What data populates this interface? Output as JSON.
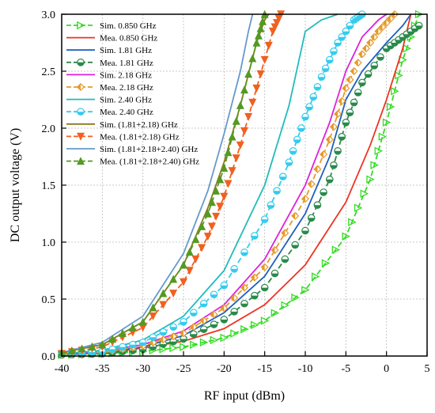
{
  "chart_data": {
    "type": "line",
    "xlabel": "RF input (dBm)",
    "ylabel": "DC output voltage (V)",
    "xlim": [
      -40,
      5
    ],
    "ylim": [
      0,
      3.0
    ],
    "x_ticks": [
      -40,
      -35,
      -30,
      -25,
      -20,
      -15,
      -10,
      -5,
      0,
      5
    ],
    "y_ticks": [
      0.0,
      0.5,
      1.0,
      1.5,
      2.0,
      2.5,
      3.0
    ],
    "x_tick_labels": [
      "-40",
      "-35",
      "-30",
      "-25",
      "-20",
      "-15",
      "-10",
      "-5",
      "0",
      "5"
    ],
    "y_tick_labels": [
      "0.0",
      "0.5",
      "1.0",
      "1.5",
      "2.0",
      "2.5",
      "3.0"
    ],
    "grid": true,
    "legend_position": "top-left",
    "series": [
      {
        "name": "Sim. 0.850 GHz",
        "color": "#33dd22",
        "style": "dashed",
        "marker": "triangle-right",
        "x": [
          -40,
          -35,
          -30,
          -25,
          -20,
          -15,
          -10,
          -5,
          -2,
          0,
          2,
          4
        ],
        "y": [
          0.01,
          0.02,
          0.04,
          0.08,
          0.16,
          0.31,
          0.58,
          1.05,
          1.55,
          2.05,
          2.6,
          3.0
        ]
      },
      {
        "name": "Mea. 0.850 GHz",
        "color": "#ee3322",
        "style": "solid",
        "marker": "none",
        "x": [
          -40,
          -35,
          -30,
          -25,
          -20,
          -15,
          -10,
          -5,
          -2,
          0,
          2,
          3
        ],
        "y": [
          0.01,
          0.03,
          0.07,
          0.13,
          0.24,
          0.45,
          0.8,
          1.35,
          1.85,
          2.25,
          2.7,
          3.0
        ]
      },
      {
        "name": "Sim. 1.81 GHz",
        "color": "#1f5fc0",
        "style": "solid",
        "marker": "none",
        "x": [
          -40,
          -35,
          -30,
          -25,
          -20,
          -15,
          -10,
          -7,
          -5,
          -3,
          0,
          2,
          3
        ],
        "y": [
          0.01,
          0.03,
          0.08,
          0.18,
          0.38,
          0.7,
          1.25,
          1.75,
          2.25,
          2.5,
          2.75,
          2.9,
          3.0
        ]
      },
      {
        "name": "Mea. 1.81 GHz",
        "color": "#2a8a4a",
        "style": "dashed",
        "marker": "half-circle",
        "x": [
          -40,
          -35,
          -30,
          -25,
          -20,
          -15,
          -10,
          -7,
          -5,
          -3,
          0,
          2,
          4
        ],
        "y": [
          0.01,
          0.02,
          0.06,
          0.15,
          0.32,
          0.6,
          1.1,
          1.55,
          2.05,
          2.4,
          2.7,
          2.8,
          2.9
        ]
      },
      {
        "name": "Sim. 2.18 GHz",
        "color": "#dd22dd",
        "style": "solid",
        "marker": "none",
        "x": [
          -40,
          -35,
          -30,
          -25,
          -20,
          -15,
          -10,
          -7,
          -5,
          -3,
          -1,
          0
        ],
        "y": [
          0.01,
          0.04,
          0.1,
          0.22,
          0.45,
          0.85,
          1.5,
          2.05,
          2.5,
          2.8,
          2.95,
          3.0
        ]
      },
      {
        "name": "Mea. 2.18 GHz",
        "color": "#e59a2a",
        "style": "dashed",
        "marker": "half-diamond",
        "x": [
          -40,
          -35,
          -30,
          -25,
          -20,
          -15,
          -10,
          -7,
          -5,
          -3,
          -1,
          1
        ],
        "y": [
          0.01,
          0.03,
          0.09,
          0.2,
          0.42,
          0.78,
          1.38,
          1.9,
          2.35,
          2.65,
          2.85,
          3.0
        ]
      },
      {
        "name": "Sim. 2.40 GHz",
        "color": "#22bbbb",
        "style": "solid",
        "marker": "none",
        "x": [
          -40,
          -35,
          -30,
          -25,
          -20,
          -15,
          -12,
          -10,
          -8,
          -6
        ],
        "y": [
          0.02,
          0.05,
          0.14,
          0.35,
          0.75,
          1.5,
          2.2,
          2.85,
          2.95,
          3.0
        ]
      },
      {
        "name": "Mea. 2.40 GHz",
        "color": "#33ccee",
        "style": "dashed",
        "marker": "half-circle",
        "x": [
          -40,
          -35,
          -30,
          -25,
          -20,
          -15,
          -12,
          -10,
          -8,
          -6,
          -4,
          -3
        ],
        "y": [
          0.02,
          0.04,
          0.12,
          0.3,
          0.62,
          1.2,
          1.7,
          2.1,
          2.45,
          2.75,
          2.95,
          3.0
        ]
      },
      {
        "name": "Sim. (1.81+2.18) GHz",
        "color": "#8a7a1a",
        "style": "solid",
        "marker": "none",
        "x": [
          -40,
          -35,
          -30,
          -25,
          -22,
          -20,
          -18,
          -16,
          -15,
          -14.5
        ],
        "y": [
          0.03,
          0.1,
          0.3,
          0.8,
          1.3,
          1.7,
          2.2,
          2.75,
          2.95,
          3.0
        ]
      },
      {
        "name": "Mea. (1.81+2.18) GHz",
        "color": "#f06020",
        "style": "dashed",
        "marker": "triangle-down",
        "x": [
          -40,
          -35,
          -30,
          -25,
          -22,
          -20,
          -18,
          -16,
          -14,
          -13
        ],
        "y": [
          0.02,
          0.08,
          0.25,
          0.65,
          1.05,
          1.4,
          1.85,
          2.35,
          2.85,
          3.0
        ]
      },
      {
        "name": "Sim. (1.81+2.18+2.40) GHz",
        "color": "#6699cc",
        "style": "solid",
        "marker": "none",
        "x": [
          -40,
          -35,
          -30,
          -25,
          -22,
          -20,
          -18,
          -17,
          -16.5
        ],
        "y": [
          0.03,
          0.12,
          0.35,
          0.9,
          1.45,
          1.95,
          2.5,
          2.85,
          3.0
        ]
      },
      {
        "name": "Mea. (1.81+2.18+2.40) GHz",
        "color": "#559922",
        "style": "dashed",
        "marker": "triangle-up",
        "x": [
          -40,
          -35,
          -30,
          -25,
          -22,
          -20,
          -18,
          -16,
          -15
        ],
        "y": [
          0.03,
          0.1,
          0.3,
          0.8,
          1.25,
          1.65,
          2.2,
          2.75,
          3.0
        ]
      }
    ]
  }
}
